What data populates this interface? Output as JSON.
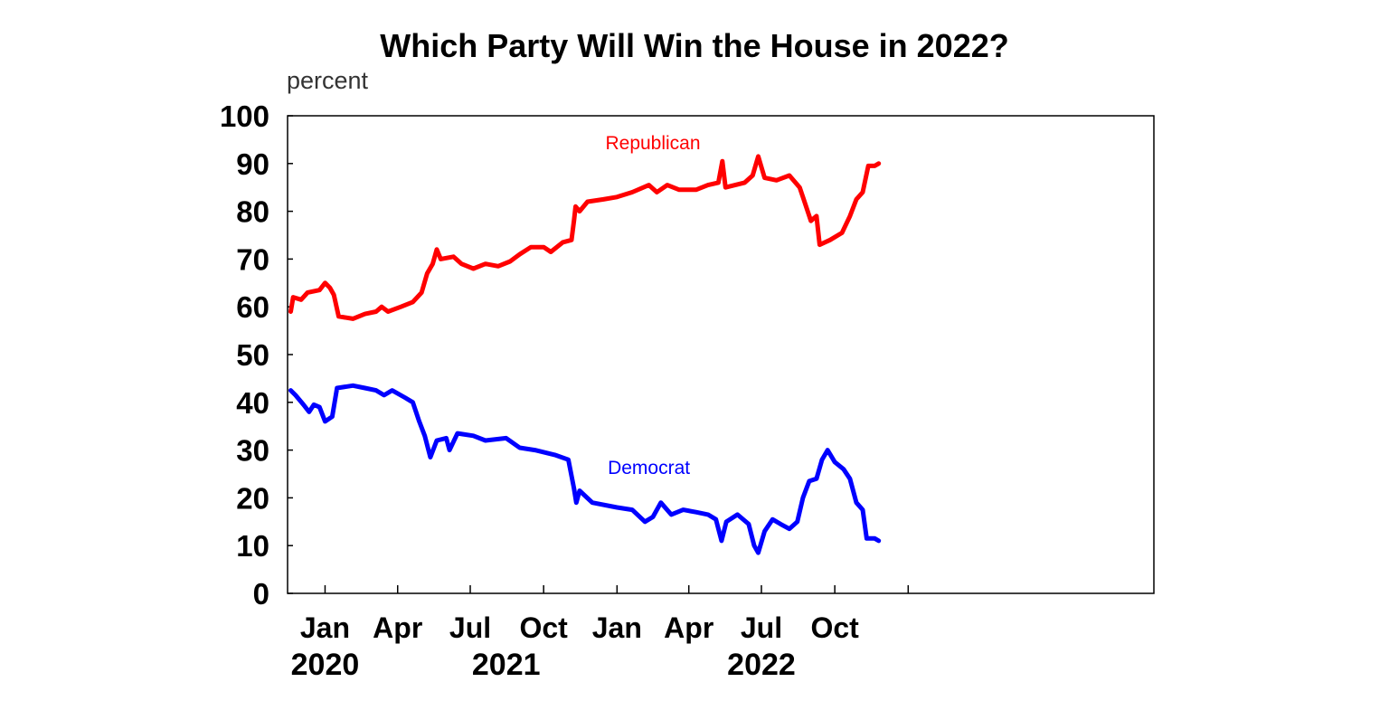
{
  "chart_data": {
    "type": "line",
    "title": "Which Party Will Win the House in 2022?",
    "ylabel": "percent",
    "xlabel": "",
    "ylim": [
      0,
      100
    ],
    "yticks": [
      0,
      10,
      20,
      30,
      40,
      50,
      60,
      70,
      80,
      90,
      100
    ],
    "xlim": [
      "2019-11-15",
      "2022-11-05"
    ],
    "xtick_labels": [
      {
        "date": "2020-01-01",
        "label": "Jan"
      },
      {
        "date": "2020-04-01",
        "label": "Apr"
      },
      {
        "date": "2020-07-01",
        "label": "Jul"
      },
      {
        "date": "2020-10-01",
        "label": "Oct"
      },
      {
        "date": "2021-01-01",
        "label": "Jan"
      },
      {
        "date": "2021-04-01",
        "label": "Apr"
      },
      {
        "date": "2021-07-01",
        "label": "Jul"
      },
      {
        "date": "2021-10-01",
        "label": "Oct"
      }
    ],
    "year_labels": [
      {
        "date": "2020-01-01",
        "label": "2020"
      },
      {
        "date": "2020-08-15",
        "label": "2021"
      },
      {
        "date": "2021-07-01",
        "label": "2022"
      }
    ],
    "grid": false,
    "series": [
      {
        "name": "Republican",
        "color": "#ff0000",
        "points": [
          [
            "2019-11-19",
            59
          ],
          [
            "2019-11-22",
            62
          ],
          [
            "2019-12-02",
            61.5
          ],
          [
            "2019-12-10",
            63
          ],
          [
            "2019-12-25",
            63.5
          ],
          [
            "2020-01-01",
            65
          ],
          [
            "2020-01-07",
            64
          ],
          [
            "2020-01-12",
            62.5
          ],
          [
            "2020-01-18",
            58
          ],
          [
            "2020-02-05",
            57.5
          ],
          [
            "2020-02-20",
            58.5
          ],
          [
            "2020-03-05",
            59
          ],
          [
            "2020-03-12",
            60
          ],
          [
            "2020-03-20",
            59
          ],
          [
            "2020-04-05",
            60
          ],
          [
            "2020-04-20",
            61
          ],
          [
            "2020-05-01",
            63
          ],
          [
            "2020-05-08",
            67
          ],
          [
            "2020-05-15",
            69
          ],
          [
            "2020-05-20",
            72
          ],
          [
            "2020-05-25",
            70
          ],
          [
            "2020-06-10",
            70.5
          ],
          [
            "2020-06-20",
            69
          ],
          [
            "2020-07-05",
            68
          ],
          [
            "2020-07-20",
            69
          ],
          [
            "2020-08-05",
            68.5
          ],
          [
            "2020-08-20",
            69.5
          ],
          [
            "2020-09-01",
            71
          ],
          [
            "2020-09-15",
            72.5
          ],
          [
            "2020-10-01",
            72.5
          ],
          [
            "2020-10-10",
            71.5
          ],
          [
            "2020-10-25",
            73.5
          ],
          [
            "2020-11-05",
            74
          ],
          [
            "2020-11-08",
            78
          ],
          [
            "2020-11-10",
            81
          ],
          [
            "2020-11-15",
            80
          ],
          [
            "2020-11-25",
            82
          ],
          [
            "2020-12-15",
            82.5
          ],
          [
            "2021-01-01",
            83
          ],
          [
            "2021-01-20",
            84
          ],
          [
            "2021-02-10",
            85.5
          ],
          [
            "2021-02-20",
            84
          ],
          [
            "2021-03-05",
            85.5
          ],
          [
            "2021-03-20",
            84.5
          ],
          [
            "2021-04-10",
            84.5
          ],
          [
            "2021-04-25",
            85.5
          ],
          [
            "2021-05-08",
            86
          ],
          [
            "2021-05-13",
            90.5
          ],
          [
            "2021-05-17",
            85
          ],
          [
            "2021-06-10",
            86
          ],
          [
            "2021-06-20",
            87.5
          ],
          [
            "2021-06-27",
            91.5
          ],
          [
            "2021-07-05",
            87
          ],
          [
            "2021-07-20",
            86.5
          ],
          [
            "2021-08-05",
            87.5
          ],
          [
            "2021-08-18",
            85
          ],
          [
            "2021-08-22",
            83
          ],
          [
            "2021-09-01",
            78
          ],
          [
            "2021-09-08",
            79
          ],
          [
            "2021-09-12",
            73
          ],
          [
            "2021-09-25",
            74
          ],
          [
            "2021-10-10",
            75.5
          ],
          [
            "2021-10-20",
            79
          ],
          [
            "2021-10-28",
            82.5
          ],
          [
            "2021-11-05",
            84
          ],
          [
            "2021-11-12",
            89.5
          ],
          [
            "2021-11-20",
            89.5
          ],
          [
            "2021-11-25",
            90
          ]
        ]
      },
      {
        "name": "Democrat",
        "color": "#0000ff",
        "points": [
          [
            "2019-11-19",
            42.5
          ],
          [
            "2019-11-25",
            41.5
          ],
          [
            "2019-12-05",
            39.5
          ],
          [
            "2019-12-12",
            38
          ],
          [
            "2019-12-18",
            39.5
          ],
          [
            "2019-12-25",
            39
          ],
          [
            "2020-01-01",
            36
          ],
          [
            "2020-01-10",
            37
          ],
          [
            "2020-01-16",
            43
          ],
          [
            "2020-02-05",
            43.5
          ],
          [
            "2020-02-20",
            43
          ],
          [
            "2020-03-05",
            42.5
          ],
          [
            "2020-03-15",
            41.5
          ],
          [
            "2020-03-25",
            42.5
          ],
          [
            "2020-04-10",
            41
          ],
          [
            "2020-04-20",
            40
          ],
          [
            "2020-04-28",
            36
          ],
          [
            "2020-05-05",
            33
          ],
          [
            "2020-05-12",
            28.5
          ],
          [
            "2020-05-20",
            32
          ],
          [
            "2020-06-01",
            32.5
          ],
          [
            "2020-06-05",
            30
          ],
          [
            "2020-06-15",
            33.5
          ],
          [
            "2020-07-05",
            33
          ],
          [
            "2020-07-20",
            32
          ],
          [
            "2020-08-15",
            32.5
          ],
          [
            "2020-09-01",
            30.5
          ],
          [
            "2020-09-20",
            30
          ],
          [
            "2020-10-15",
            29
          ],
          [
            "2020-11-01",
            28
          ],
          [
            "2020-11-08",
            22
          ],
          [
            "2020-11-11",
            19
          ],
          [
            "2020-11-15",
            21.5
          ],
          [
            "2020-12-01",
            19
          ],
          [
            "2021-01-01",
            18
          ],
          [
            "2021-01-20",
            17.5
          ],
          [
            "2021-02-05",
            15
          ],
          [
            "2021-02-15",
            16
          ],
          [
            "2021-02-25",
            19
          ],
          [
            "2021-03-10",
            16.5
          ],
          [
            "2021-03-25",
            17.5
          ],
          [
            "2021-04-10",
            17
          ],
          [
            "2021-04-25",
            16.5
          ],
          [
            "2021-05-05",
            15.5
          ],
          [
            "2021-05-12",
            11
          ],
          [
            "2021-05-18",
            15
          ],
          [
            "2021-06-01",
            16.5
          ],
          [
            "2021-06-15",
            14.5
          ],
          [
            "2021-06-22",
            10
          ],
          [
            "2021-06-27",
            8.5
          ],
          [
            "2021-07-05",
            13
          ],
          [
            "2021-07-15",
            15.5
          ],
          [
            "2021-07-25",
            14.5
          ],
          [
            "2021-08-05",
            13.5
          ],
          [
            "2021-08-15",
            15
          ],
          [
            "2021-08-22",
            20
          ],
          [
            "2021-08-30",
            23.5
          ],
          [
            "2021-09-08",
            24
          ],
          [
            "2021-09-15",
            28
          ],
          [
            "2021-09-22",
            30
          ],
          [
            "2021-10-01",
            27.5
          ],
          [
            "2021-10-12",
            26
          ],
          [
            "2021-10-20",
            24
          ],
          [
            "2021-10-28",
            19
          ],
          [
            "2021-11-05",
            17.5
          ],
          [
            "2021-11-10",
            11.5
          ],
          [
            "2021-11-20",
            11.5
          ],
          [
            "2021-11-25",
            11
          ]
        ]
      }
    ],
    "annotations": [
      {
        "text": "Republican",
        "date": "2021-02-15",
        "y": 93,
        "color": "#ff0000"
      },
      {
        "text": "Democrat",
        "date": "2021-02-10",
        "y": 25,
        "color": "#0000ff"
      }
    ]
  }
}
